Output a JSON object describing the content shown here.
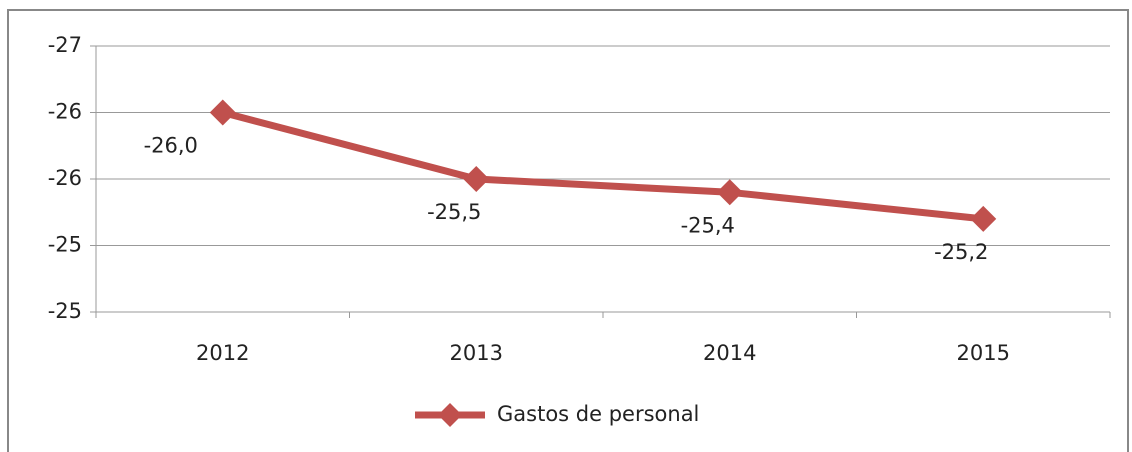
{
  "chart_data": {
    "type": "line",
    "categories": [
      "2012",
      "2013",
      "2014",
      "2015"
    ],
    "series": [
      {
        "name": "Gastos de personal",
        "color": "#c0504d",
        "values": [
          -26.0,
          -25.5,
          -25.4,
          -25.2
        ],
        "value_labels": [
          "-26,0",
          "-25,5",
          "-25,4",
          "-25,2"
        ]
      }
    ],
    "ylim": [
      -26.5,
      -24.5
    ],
    "y_reversed": true,
    "yticks": [
      {
        "value": -26.5,
        "label": "-27"
      },
      {
        "value": -26.0,
        "label": "-26"
      },
      {
        "value": -25.5,
        "label": "-26"
      },
      {
        "value": -25.0,
        "label": "-25"
      },
      {
        "value": -24.5,
        "label": "-25"
      }
    ],
    "grid": true,
    "legend": "bottom"
  }
}
